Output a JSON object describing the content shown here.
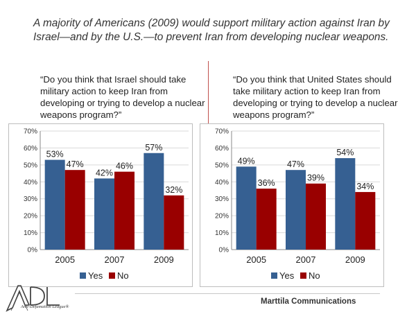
{
  "headline": "A majority of Americans (2009) would support military action against Iran by Israel—and by the U.S.—to prevent Iran from developing nuclear weapons.",
  "footer": {
    "source": "Marttila Communications",
    "logo_text": "ADL",
    "logo_subtext": "Anti-Defamation League®"
  },
  "colors": {
    "yes": "#366092",
    "no": "#990000",
    "grid": "#d9d9d9",
    "divider": "#c0504d"
  },
  "chart_data": [
    {
      "type": "bar",
      "question": "“Do you think that Israel should take military action to keep Iran from developing or trying to develop a nuclear weapons program?”",
      "categories": [
        "2005",
        "2007",
        "2009"
      ],
      "series": [
        {
          "name": "Yes",
          "values": [
            53,
            42,
            57
          ],
          "labels": [
            "53%",
            "42%",
            "57%"
          ]
        },
        {
          "name": "No",
          "values": [
            47,
            46,
            32
          ],
          "labels": [
            "47%",
            "46%",
            "32%"
          ]
        }
      ],
      "ylim": [
        0,
        70
      ],
      "yticks": [
        "0%",
        "10%",
        "20%",
        "30%",
        "40%",
        "50%",
        "60%",
        "70%"
      ],
      "grid": true,
      "legend": "bottom"
    },
    {
      "type": "bar",
      "question": "“Do you think that United States should take military action to keep Iran from developing or trying to develop a nuclear weapons program?”",
      "categories": [
        "2005",
        "2007",
        "2009"
      ],
      "series": [
        {
          "name": "Yes",
          "values": [
            49,
            47,
            54
          ],
          "labels": [
            "49%",
            "47%",
            "54%"
          ]
        },
        {
          "name": "No",
          "values": [
            36,
            39,
            34
          ],
          "labels": [
            "36%",
            "39%",
            "34%"
          ]
        }
      ],
      "ylim": [
        0,
        70
      ],
      "yticks": [
        "0%",
        "10%",
        "20%",
        "30%",
        "40%",
        "50%",
        "60%",
        "70%"
      ],
      "grid": true,
      "legend": "bottom"
    }
  ]
}
